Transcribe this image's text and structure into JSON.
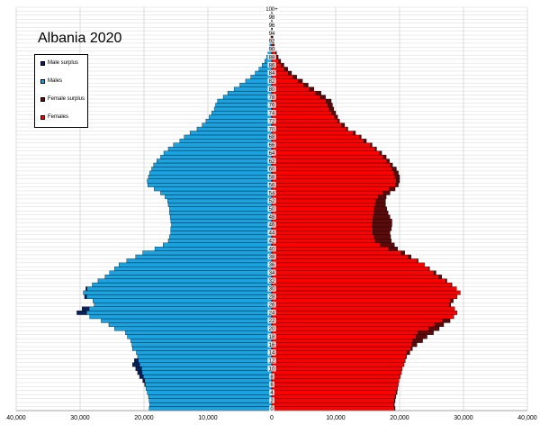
{
  "chart_data": {
    "type": "bar",
    "orientation": "horizontal-population-pyramid",
    "title": "Albania 2020",
    "xlabel": "",
    "ylabel": "",
    "xlim": [
      -40000,
      40000
    ],
    "x_tick_values": [
      -40000,
      -30000,
      -20000,
      -10000,
      0,
      10000,
      20000,
      30000,
      40000
    ],
    "x_tick_labels": [
      "40,000",
      "30,000",
      "20,000",
      "10,000",
      "0",
      "10,000",
      "20,000",
      "30,000",
      "40,000"
    ],
    "age_tick_labels": [
      "0",
      "2",
      "4",
      "6",
      "8",
      "10",
      "12",
      "14",
      "16",
      "18",
      "20",
      "22",
      "24",
      "26",
      "28",
      "30",
      "32",
      "34",
      "36",
      "38",
      "40",
      "42",
      "44",
      "46",
      "48",
      "50",
      "52",
      "54",
      "56",
      "58",
      "60",
      "62",
      "64",
      "66",
      "68",
      "70",
      "72",
      "74",
      "76",
      "78",
      "80",
      "82",
      "84",
      "86",
      "88",
      "90",
      "92",
      "94",
      "96",
      "98",
      "100+"
    ],
    "ages": [
      0,
      1,
      2,
      3,
      4,
      5,
      6,
      7,
      8,
      9,
      10,
      11,
      12,
      13,
      14,
      15,
      16,
      17,
      18,
      19,
      20,
      21,
      22,
      23,
      24,
      25,
      26,
      27,
      28,
      29,
      30,
      31,
      32,
      33,
      34,
      35,
      36,
      37,
      38,
      39,
      40,
      41,
      42,
      43,
      44,
      45,
      46,
      47,
      48,
      49,
      50,
      51,
      52,
      53,
      54,
      55,
      56,
      57,
      58,
      59,
      60,
      61,
      62,
      63,
      64,
      65,
      66,
      67,
      68,
      69,
      70,
      71,
      72,
      73,
      74,
      75,
      76,
      77,
      78,
      79,
      80,
      81,
      82,
      83,
      84,
      85,
      86,
      87,
      88,
      89,
      90,
      91,
      92,
      93,
      94,
      95,
      96,
      97,
      98,
      99,
      100
    ],
    "series": [
      {
        "name": "Males",
        "color": "#1aa3e0",
        "values": [
          19200,
          19100,
          19200,
          19300,
          19500,
          19700,
          19900,
          20200,
          20700,
          21000,
          21300,
          21800,
          21500,
          21000,
          21200,
          21800,
          21900,
          22100,
          22600,
          22900,
          24600,
          25500,
          26700,
          28500,
          30500,
          29700,
          27800,
          28000,
          29300,
          29500,
          29100,
          28100,
          27200,
          26100,
          25400,
          24600,
          23900,
          22700,
          21300,
          20200,
          18300,
          17000,
          16200,
          16000,
          15800,
          15800,
          15700,
          15800,
          15900,
          16000,
          16000,
          16200,
          16300,
          16700,
          17400,
          18400,
          19400,
          19500,
          19300,
          19100,
          18800,
          18500,
          18000,
          17400,
          16900,
          16200,
          15400,
          14400,
          13700,
          12800,
          11700,
          10900,
          10300,
          9800,
          9400,
          9000,
          8800,
          8500,
          7600,
          6900,
          5900,
          5000,
          4100,
          3300,
          2600,
          2000,
          1500,
          1100,
          800,
          600,
          420,
          300,
          200,
          140,
          90,
          60,
          40,
          25,
          15,
          8,
          5
        ]
      },
      {
        "name": "Females",
        "color": "#ff0000",
        "values": [
          19300,
          19200,
          19300,
          19400,
          19600,
          19700,
          19800,
          19900,
          20100,
          20300,
          20400,
          20700,
          20900,
          21100,
          21600,
          22000,
          22700,
          23600,
          24300,
          25300,
          26200,
          26900,
          27900,
          28500,
          29000,
          28600,
          28000,
          28400,
          29000,
          29500,
          28900,
          28200,
          27400,
          26600,
          25700,
          24700,
          23900,
          22900,
          21800,
          20800,
          19700,
          19200,
          18700,
          18600,
          18500,
          18700,
          18800,
          18800,
          18500,
          18200,
          18000,
          17800,
          17800,
          17900,
          18500,
          19300,
          19800,
          20000,
          20000,
          19800,
          19500,
          18900,
          18400,
          17900,
          17200,
          16400,
          15700,
          14800,
          14000,
          13100,
          11900,
          11400,
          10600,
          10300,
          10000,
          9700,
          9500,
          9300,
          8400,
          7700,
          6600,
          5700,
          4800,
          3900,
          3100,
          2500,
          1900,
          1400,
          1000,
          750,
          550,
          400,
          280,
          190,
          120,
          80,
          50,
          30,
          18,
          10,
          6
        ]
      }
    ],
    "derived_series": [
      {
        "name": "Male surplus",
        "color": "#0a1f5c",
        "note": "males exceed females"
      },
      {
        "name": "Female surplus",
        "color": "#5c0a0a",
        "note": "females exceed males"
      }
    ],
    "legend": {
      "placement": "top-left",
      "items": [
        {
          "label": "Male surplus",
          "color": "#0a1f5c"
        },
        {
          "label": "Males",
          "color": "#1aa3e0"
        },
        {
          "label": "Female surplus",
          "color": "#5c0a0a"
        },
        {
          "label": "Females",
          "color": "#ff0000"
        }
      ]
    },
    "grid": true
  }
}
